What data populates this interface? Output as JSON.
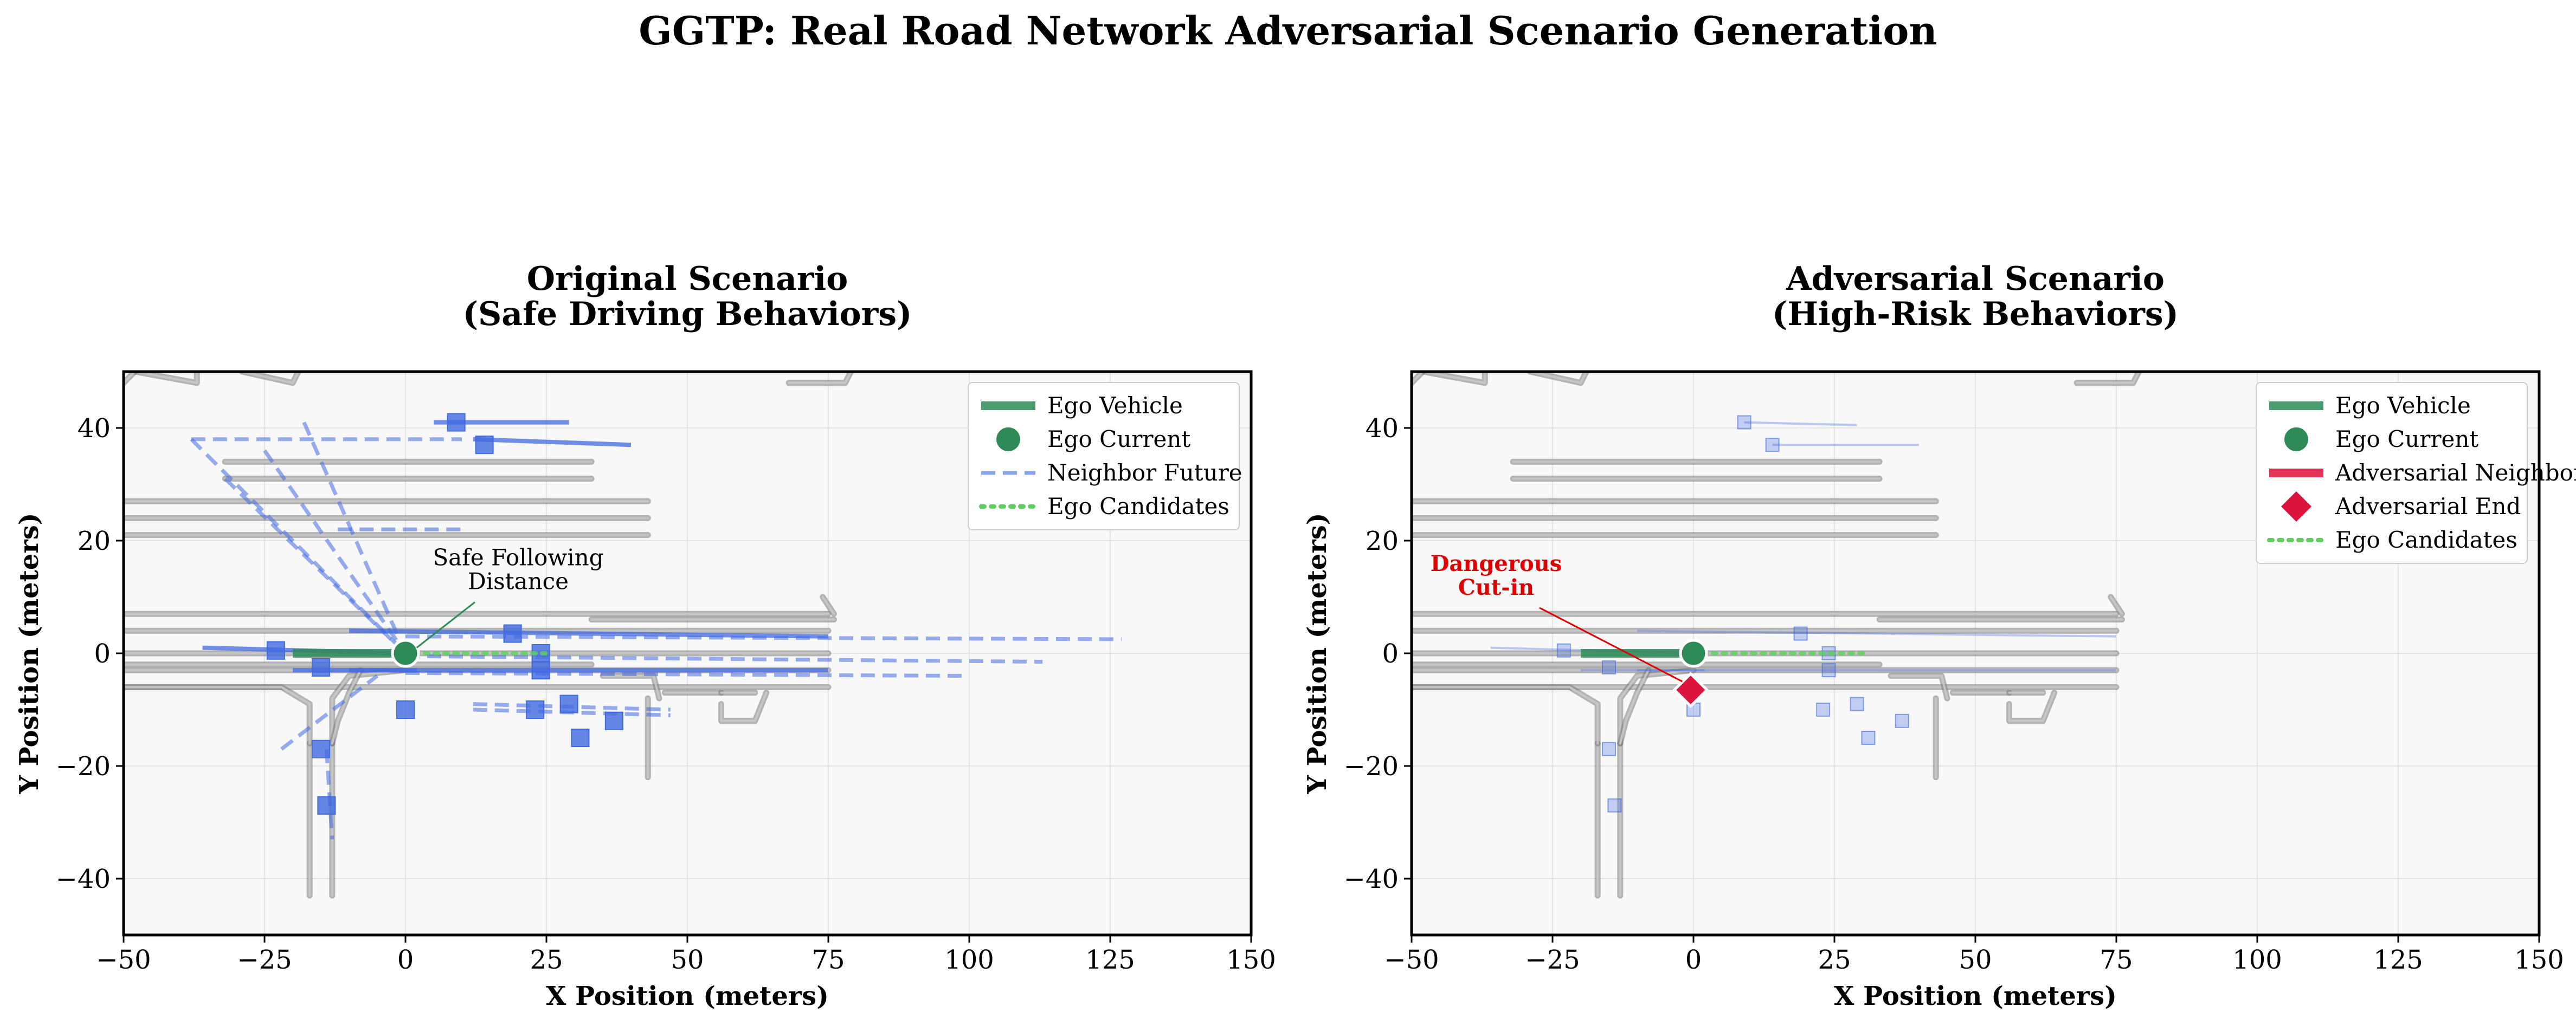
{
  "figure_title": "GGTP: Real Road Network Adversarial Scenario Generation",
  "colors": {
    "ego": "#2e8b57",
    "neighbor": "#4169e1",
    "adversarial": "#dc143c",
    "candidates": "#5ecf5e",
    "road": "#7a7a7a",
    "panel_bg": "#f8f8f8",
    "annotation_red": "#e00000"
  },
  "road_network": {
    "lanes": [
      {
        "x": [
          -50,
          75
        ],
        "y": [
          7,
          7
        ]
      },
      {
        "x": [
          -50,
          75
        ],
        "y": [
          4,
          4
        ]
      },
      {
        "x": [
          -50,
          75
        ],
        "y": [
          0,
          0
        ]
      },
      {
        "x": [
          -50,
          75
        ],
        "y": [
          -3,
          -3
        ]
      },
      {
        "x": [
          -50,
          75
        ],
        "y": [
          -6,
          -6
        ]
      },
      {
        "x": [
          -50,
          33
        ],
        "y": [
          -2,
          -2
        ]
      },
      {
        "x": [
          33,
          76
        ],
        "y": [
          6,
          6
        ]
      },
      {
        "x": [
          -32,
          33
        ],
        "y": [
          34,
          34
        ]
      },
      {
        "x": [
          -32,
          33
        ],
        "y": [
          31,
          31
        ]
      },
      {
        "x": [
          -50,
          43
        ],
        "y": [
          27,
          27
        ]
      },
      {
        "x": [
          -50,
          43
        ],
        "y": [
          24,
          24
        ]
      },
      {
        "x": [
          -50,
          43
        ],
        "y": [
          21,
          21
        ]
      },
      {
        "x": [
          -17,
          -17
        ],
        "y": [
          -16,
          -43
        ]
      },
      {
        "x": [
          -13,
          -13
        ],
        "y": [
          -16,
          -43
        ]
      },
      {
        "x": [
          43,
          43
        ],
        "y": [
          -8,
          -22
        ]
      }
    ],
    "curves": [
      {
        "x": [
          -50,
          -22,
          -17,
          -17
        ],
        "y": [
          -6,
          -6,
          -9,
          -16
        ]
      },
      {
        "x": [
          -13,
          -13,
          -10,
          0
        ],
        "y": [
          -16,
          -8,
          -4,
          -3
        ]
      },
      {
        "x": [
          -8,
          -10,
          -12,
          -13
        ],
        "y": [
          -3,
          -7,
          -12,
          -16
        ]
      },
      {
        "x": [
          35,
          44,
          45
        ],
        "y": [
          -4,
          -4,
          -8
        ]
      },
      {
        "x": [
          56,
          56,
          62,
          64
        ],
        "y": [
          -9,
          -12,
          -12,
          -7
        ]
      },
      {
        "x": [
          46,
          50,
          56
        ],
        "y": [
          -7,
          -7,
          -7
        ]
      },
      {
        "x": [
          56,
          62
        ],
        "y": [
          -7,
          -7
        ]
      },
      {
        "x": [
          -48,
          -37,
          -37
        ],
        "y": [
          50,
          48,
          50
        ]
      },
      {
        "x": [
          -29,
          -20,
          -19
        ],
        "y": [
          50,
          48,
          50
        ]
      },
      {
        "x": [
          68,
          78,
          79
        ],
        "y": [
          48,
          48,
          50
        ]
      },
      {
        "x": [
          -50,
          -48
        ],
        "y": [
          48,
          50
        ]
      },
      {
        "x": [
          74,
          76
        ],
        "y": [
          10,
          7
        ]
      }
    ]
  },
  "panels": [
    {
      "id": "original",
      "title_line1": "Original Scenario",
      "title_line2": "(Safe Driving Behaviors)",
      "xlabel": "X Position (meters)",
      "ylabel": "Y Position (meters)",
      "xlim": [
        -50,
        150
      ],
      "ylim": [
        -50,
        50
      ],
      "xticks": [
        -50,
        -25,
        0,
        25,
        50,
        75,
        100,
        125,
        150
      ],
      "yticks": [
        -40,
        -20,
        0,
        20,
        40
      ],
      "xtick_labels": [
        "−50",
        "−25",
        "0",
        "25",
        "50",
        "75",
        "100",
        "125",
        "150"
      ],
      "ytick_labels": [
        "−40",
        "−20",
        "0",
        "20",
        "40"
      ],
      "legend_location": "upper right",
      "legend": [
        {
          "label": "Ego Vehicle",
          "style": "thick-line",
          "color": "#2e8b57"
        },
        {
          "label": "Ego Current",
          "style": "circle",
          "color": "#2e8b57"
        },
        {
          "label": "Neighbor Future",
          "style": "dashed-line",
          "color": "#4169e1"
        },
        {
          "label": "Ego Candidates",
          "style": "dotted-line",
          "color": "#5ecf5e"
        }
      ],
      "annotation": {
        "line1": "Safe Following",
        "line2": "Distance",
        "text_at": [
          20,
          11
        ],
        "points_to": [
          2,
          1
        ],
        "color": "#2e8b57"
      },
      "chart_data": {
        "type": "scatter",
        "ego_trajectory": {
          "x": [
            -20,
            0
          ],
          "y": [
            0,
            0
          ]
        },
        "ego_current": {
          "x": 0,
          "y": 0
        },
        "ego_candidates": {
          "x": [
            0,
            25
          ],
          "y": [
            0,
            0
          ]
        },
        "neighbor_current": [
          {
            "x": 9,
            "y": 41
          },
          {
            "x": 14,
            "y": 37
          },
          {
            "x": -23,
            "y": 0.5
          },
          {
            "x": -15,
            "y": -2.5
          },
          {
            "x": 19,
            "y": 3.5
          },
          {
            "x": 24,
            "y": -3
          },
          {
            "x": 24,
            "y": 0
          },
          {
            "x": 0,
            "y": -10
          },
          {
            "x": -15,
            "y": -17
          },
          {
            "x": -14,
            "y": -27
          },
          {
            "x": 23,
            "y": -10
          },
          {
            "x": 29,
            "y": -9
          },
          {
            "x": 31,
            "y": -15
          },
          {
            "x": 37,
            "y": -12
          }
        ],
        "neighbor_history": [
          {
            "x": [
              5,
              29
            ],
            "y": [
              41,
              41
            ]
          },
          {
            "x": [
              12,
              40
            ],
            "y": [
              38,
              37
            ]
          },
          {
            "x": [
              -36,
              0
            ],
            "y": [
              1,
              0
            ]
          },
          {
            "x": [
              -20,
              2
            ],
            "y": [
              -3,
              -3
            ]
          },
          {
            "x": [
              -10,
              75
            ],
            "y": [
              4,
              3
            ]
          },
          {
            "x": [
              -10,
              75
            ],
            "y": [
              -3,
              -3
            ]
          }
        ],
        "neighbor_future": [
          {
            "x": [
              -38,
              0
            ],
            "y": [
              38,
              0
            ]
          },
          {
            "x": [
              -38,
              10
            ],
            "y": [
              38,
              38
            ]
          },
          {
            "x": [
              -32,
              0
            ],
            "y": [
              31,
              0
            ]
          },
          {
            "x": [
              -18,
              0
            ],
            "y": [
              41,
              0
            ]
          },
          {
            "x": [
              -25,
              0
            ],
            "y": [
              36,
              0
            ]
          },
          {
            "x": [
              -12,
              10
            ],
            "y": [
              22,
              22
            ]
          },
          {
            "x": [
              -22,
              -5
            ],
            "y": [
              -17,
              -4
            ]
          },
          {
            "x": [
              -14,
              -13
            ],
            "y": [
              -17,
              -33
            ]
          },
          {
            "x": [
              0,
              127
            ],
            "y": [
              3,
              2.5
            ]
          },
          {
            "x": [
              0,
              113
            ],
            "y": [
              -0.5,
              -1.5
            ]
          },
          {
            "x": [
              0,
              99
            ],
            "y": [
              -3.5,
              -4
            ]
          },
          {
            "x": [
              12,
              47
            ],
            "y": [
              -9,
              -10
            ]
          },
          {
            "x": [
              12,
              47
            ],
            "y": [
              -10,
              -11
            ]
          }
        ]
      }
    },
    {
      "id": "adversarial",
      "title_line1": "Adversarial Scenario",
      "title_line2": "(High-Risk Behaviors)",
      "xlabel": "X Position (meters)",
      "ylabel": "Y Position (meters)",
      "xlim": [
        -50,
        150
      ],
      "ylim": [
        -50,
        50
      ],
      "xticks": [
        -50,
        -25,
        0,
        25,
        50,
        75,
        100,
        125,
        150
      ],
      "yticks": [
        -40,
        -20,
        0,
        20,
        40
      ],
      "xtick_labels": [
        "−50",
        "−25",
        "0",
        "25",
        "50",
        "75",
        "100",
        "125",
        "150"
      ],
      "ytick_labels": [
        "−40",
        "−20",
        "0",
        "20",
        "40"
      ],
      "legend_location": "upper right",
      "legend": [
        {
          "label": "Ego Vehicle",
          "style": "thick-line",
          "color": "#2e8b57"
        },
        {
          "label": "Ego Current",
          "style": "circle",
          "color": "#2e8b57"
        },
        {
          "label": "Adversarial Neighbor",
          "style": "thick-line",
          "color": "#dc143c"
        },
        {
          "label": "Adversarial End",
          "style": "diamond",
          "color": "#dc143c"
        },
        {
          "label": "Ego Candidates",
          "style": "dotted-line",
          "color": "#5ecf5e"
        }
      ],
      "annotation": {
        "line1": "Dangerous",
        "line2": "Cut-in",
        "text_at": [
          -35,
          10
        ],
        "points_to": [
          -2,
          -5
        ],
        "color": "#e00000"
      },
      "chart_data": {
        "type": "scatter",
        "ego_trajectory": {
          "x": [
            -20,
            0
          ],
          "y": [
            0,
            0
          ]
        },
        "ego_current": {
          "x": 0,
          "y": 0
        },
        "ego_candidates": {
          "x": [
            0,
            30
          ],
          "y": [
            0,
            0
          ]
        },
        "adversarial_end": {
          "x": -0.5,
          "y": -6.5
        },
        "neighbor_current": [
          {
            "x": 9,
            "y": 41
          },
          {
            "x": 14,
            "y": 37
          },
          {
            "x": -23,
            "y": 0.5
          },
          {
            "x": -15,
            "y": -2.5
          },
          {
            "x": 19,
            "y": 3.5
          },
          {
            "x": 24,
            "y": -3
          },
          {
            "x": 24,
            "y": 0
          },
          {
            "x": 0,
            "y": -10
          },
          {
            "x": -15,
            "y": -17
          },
          {
            "x": -14,
            "y": -27
          },
          {
            "x": 23,
            "y": -10
          },
          {
            "x": 29,
            "y": -9
          },
          {
            "x": 31,
            "y": -15
          },
          {
            "x": 37,
            "y": -12
          }
        ],
        "neighbor_history": [
          {
            "x": [
              9,
              29
            ],
            "y": [
              41,
              40.5
            ]
          },
          {
            "x": [
              14,
              40
            ],
            "y": [
              37,
              37
            ]
          },
          {
            "x": [
              -36,
              0
            ],
            "y": [
              1,
              0
            ]
          },
          {
            "x": [
              -20,
              2
            ],
            "y": [
              -3,
              -3
            ]
          },
          {
            "x": [
              -10,
              75
            ],
            "y": [
              4,
              3
            ]
          },
          {
            "x": [
              -10,
              75
            ],
            "y": [
              -3,
              -3
            ]
          }
        ]
      }
    }
  ]
}
